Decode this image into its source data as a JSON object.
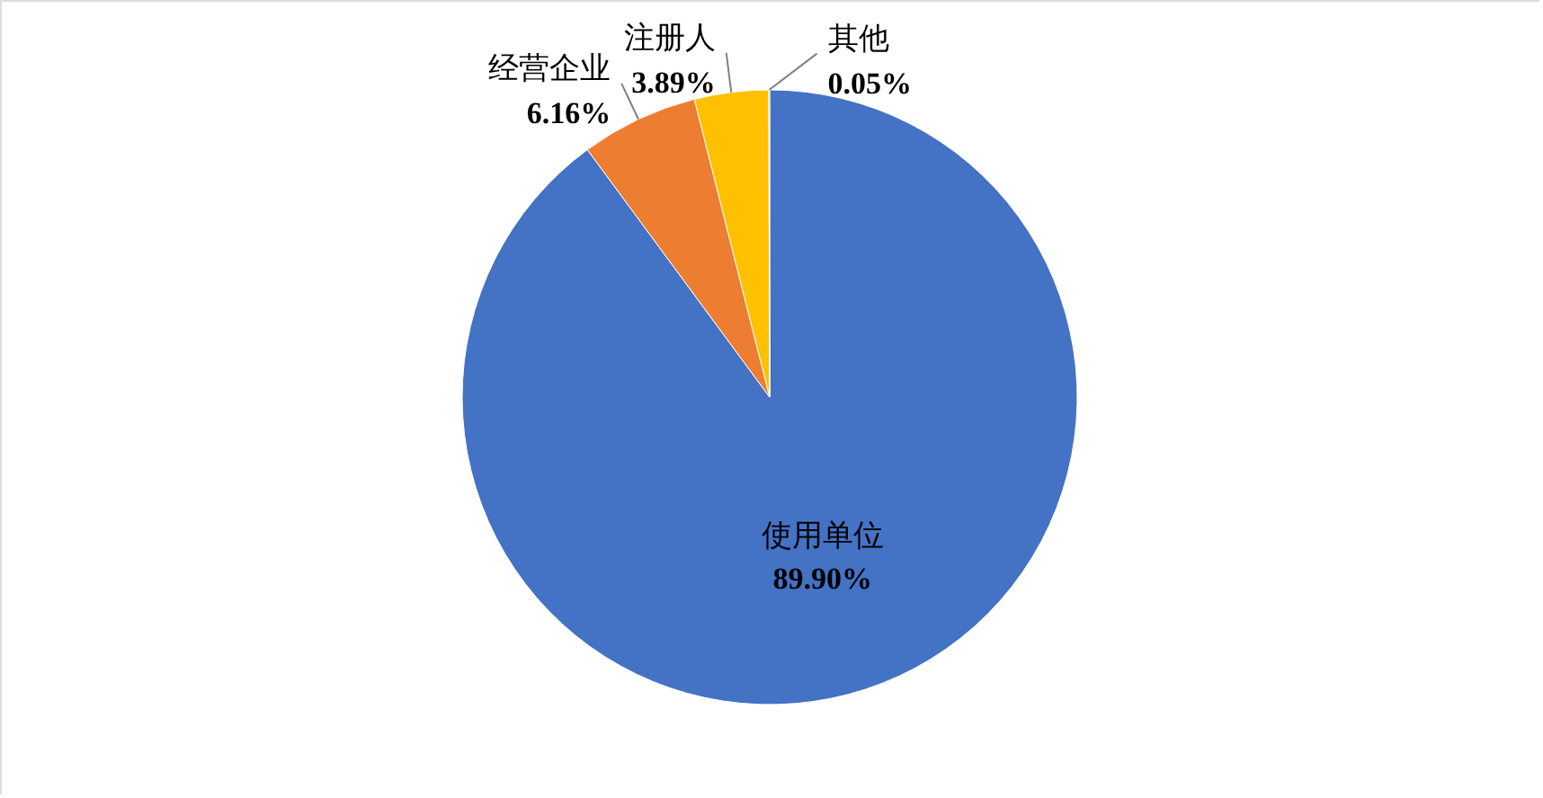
{
  "chart_data": {
    "type": "pie",
    "categories": [
      "使用单位",
      "经营企业",
      "注册人",
      "其他"
    ],
    "values": [
      89.9,
      6.16,
      3.89,
      0.05
    ],
    "colors": [
      "#4472c4",
      "#ed7d31",
      "#ffc000",
      "#a5a5a5"
    ],
    "value_labels": [
      "89.90%",
      "6.16%",
      "3.89%",
      "0.05%"
    ]
  }
}
